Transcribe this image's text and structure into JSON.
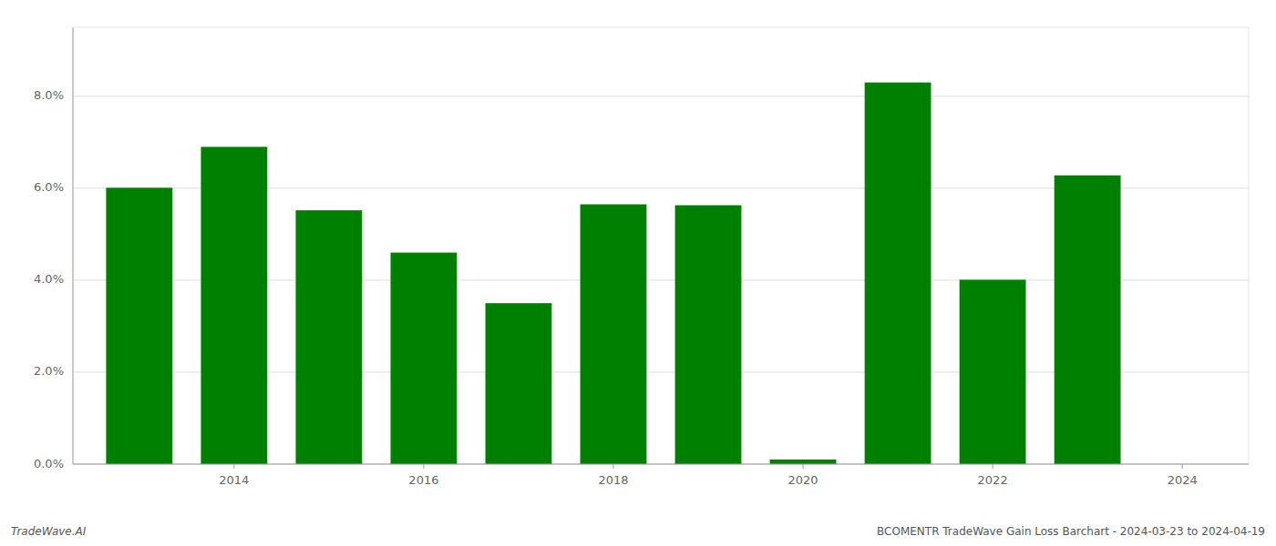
{
  "chart_data": {
    "type": "bar",
    "x": [
      2013,
      2014,
      2015,
      2016,
      2017,
      2018,
      2019,
      2020,
      2021,
      2022,
      2023
    ],
    "values": [
      0.0601,
      0.069,
      0.0552,
      0.046,
      0.035,
      0.0565,
      0.0563,
      0.001,
      0.083,
      0.0401,
      0.0628
    ],
    "color": "#008000",
    "xlim": [
      2012.3,
      2024.7
    ],
    "xticks": [
      2014,
      2016,
      2018,
      2020,
      2022,
      2024
    ],
    "ylim": [
      0.0,
      0.095
    ],
    "yticks": [
      {
        "value": 0.0,
        "label": "0.0%"
      },
      {
        "value": 0.02,
        "label": "2.0%"
      },
      {
        "value": 0.04,
        "label": "4.0%"
      },
      {
        "value": 0.06,
        "label": "6.0%"
      },
      {
        "value": 0.08,
        "label": "8.0%"
      }
    ],
    "grid": true,
    "annotations": [
      "TradeWave.AI",
      "BCOMENTR TradeWave Gain Loss Barchart - 2024-03-23 to 2024-04-19"
    ]
  }
}
